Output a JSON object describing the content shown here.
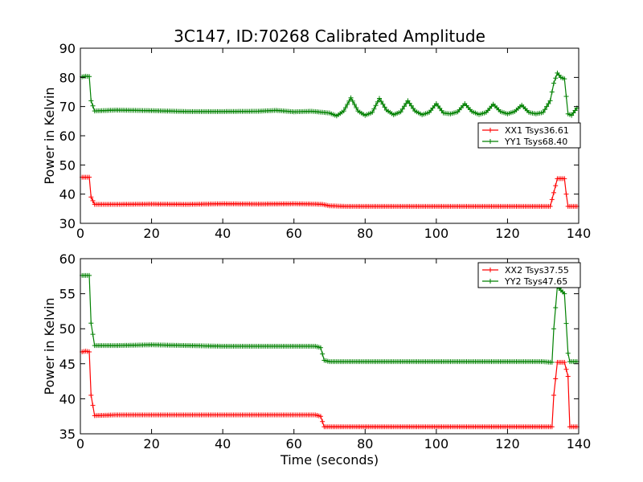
{
  "title": "3C147, ID:70268 Calibrated Amplitude",
  "chart_data": [
    {
      "type": "line",
      "ylabel": "Power in Kelvin",
      "xlabel": "",
      "xlim": [
        0,
        140
      ],
      "ylim": [
        30,
        90
      ],
      "xticks": [
        0,
        20,
        40,
        60,
        80,
        100,
        120,
        140
      ],
      "yticks": [
        30,
        40,
        50,
        60,
        70,
        80,
        90
      ],
      "grid": false,
      "legend_position": "center-right",
      "series": [
        {
          "name": "XX1 Tsys36.61",
          "color": "#ff0000",
          "x": [
            0.5,
            1.5,
            2.5,
            3,
            4,
            10,
            20,
            30,
            40,
            50,
            60,
            66,
            68,
            70,
            75,
            80,
            90,
            100,
            110,
            120,
            128,
            132,
            133,
            134,
            136,
            136.5,
            137,
            139.5
          ],
          "y": [
            45.8,
            45.8,
            45.8,
            39.0,
            36.5,
            36.5,
            36.6,
            36.5,
            36.7,
            36.6,
            36.7,
            36.6,
            36.5,
            36.0,
            35.8,
            35.8,
            35.8,
            35.8,
            35.8,
            35.8,
            35.8,
            35.8,
            40.5,
            45.3,
            45.3,
            40.0,
            35.8,
            35.8
          ]
        },
        {
          "name": "YY1 Tsys68.40",
          "color": "#008000",
          "x": [
            0.5,
            1.5,
            2.5,
            3,
            4,
            10,
            20,
            30,
            40,
            50,
            55,
            60,
            65,
            70,
            72,
            74,
            76,
            78,
            80,
            82,
            84,
            86,
            88,
            90,
            92,
            94,
            96,
            98,
            100,
            102,
            104,
            106,
            108,
            110,
            112,
            114,
            116,
            118,
            120,
            122,
            124,
            126,
            128,
            130,
            132,
            133,
            134,
            135,
            136,
            137,
            138,
            139.5
          ],
          "y": [
            80.2,
            80.4,
            80.3,
            72.0,
            68.5,
            68.8,
            68.6,
            68.3,
            68.3,
            68.4,
            68.7,
            68.2,
            68.4,
            67.8,
            66.8,
            68.5,
            73.0,
            68.5,
            67.0,
            68.0,
            72.8,
            68.8,
            67.2,
            68.2,
            72.0,
            68.5,
            67.2,
            68.0,
            71.0,
            67.8,
            67.5,
            68.2,
            71.0,
            68.3,
            67.3,
            68.0,
            70.8,
            68.3,
            67.5,
            68.3,
            70.5,
            68.0,
            67.5,
            68.0,
            72.0,
            78.0,
            81.5,
            80.0,
            79.5,
            67.5,
            67.0,
            69.5
          ]
        }
      ],
      "legend": [
        "XX1 Tsys36.61",
        "YY1 Tsys68.40"
      ]
    },
    {
      "type": "line",
      "ylabel": "Power in Kelvin",
      "xlabel": "Time (seconds)",
      "xlim": [
        0,
        140
      ],
      "ylim": [
        35,
        60
      ],
      "xticks": [
        0,
        20,
        40,
        60,
        80,
        100,
        120,
        140
      ],
      "yticks": [
        35,
        40,
        45,
        50,
        55,
        60
      ],
      "grid": false,
      "legend_position": "top-right",
      "series": [
        {
          "name": "XX2 Tsys37.55",
          "color": "#ff0000",
          "x": [
            0.5,
            1.5,
            2.5,
            3,
            4,
            10,
            20,
            30,
            40,
            50,
            60,
            66,
            67.5,
            68.5,
            70,
            80,
            90,
            100,
            110,
            120,
            130,
            132.5,
            133,
            134,
            136,
            137,
            137.5,
            139.5
          ],
          "y": [
            46.7,
            46.8,
            46.7,
            40.5,
            37.6,
            37.7,
            37.7,
            37.7,
            37.7,
            37.7,
            37.7,
            37.7,
            37.5,
            36.0,
            36.0,
            36.0,
            36.0,
            36.0,
            36.0,
            36.0,
            36.0,
            36.0,
            40.5,
            45.2,
            45.2,
            43.2,
            36.0,
            36.0
          ]
        },
        {
          "name": "YY2 Tsys47.65",
          "color": "#008000",
          "x": [
            0.5,
            1.5,
            2.5,
            3,
            4,
            10,
            20,
            30,
            40,
            50,
            60,
            66,
            67.5,
            68.5,
            70,
            80,
            90,
            100,
            110,
            120,
            130,
            132.5,
            133,
            134,
            135,
            136,
            137,
            137.5,
            139.5
          ],
          "y": [
            57.6,
            57.6,
            57.6,
            50.8,
            47.6,
            47.6,
            47.7,
            47.6,
            47.5,
            47.5,
            47.5,
            47.5,
            47.3,
            45.5,
            45.3,
            45.3,
            45.3,
            45.3,
            45.3,
            45.3,
            45.3,
            45.2,
            50.0,
            56.0,
            55.5,
            55.0,
            46.5,
            45.3,
            45.3
          ]
        }
      ],
      "legend": [
        "XX2 Tsys37.55",
        "YY2 Tsys47.65"
      ]
    }
  ]
}
